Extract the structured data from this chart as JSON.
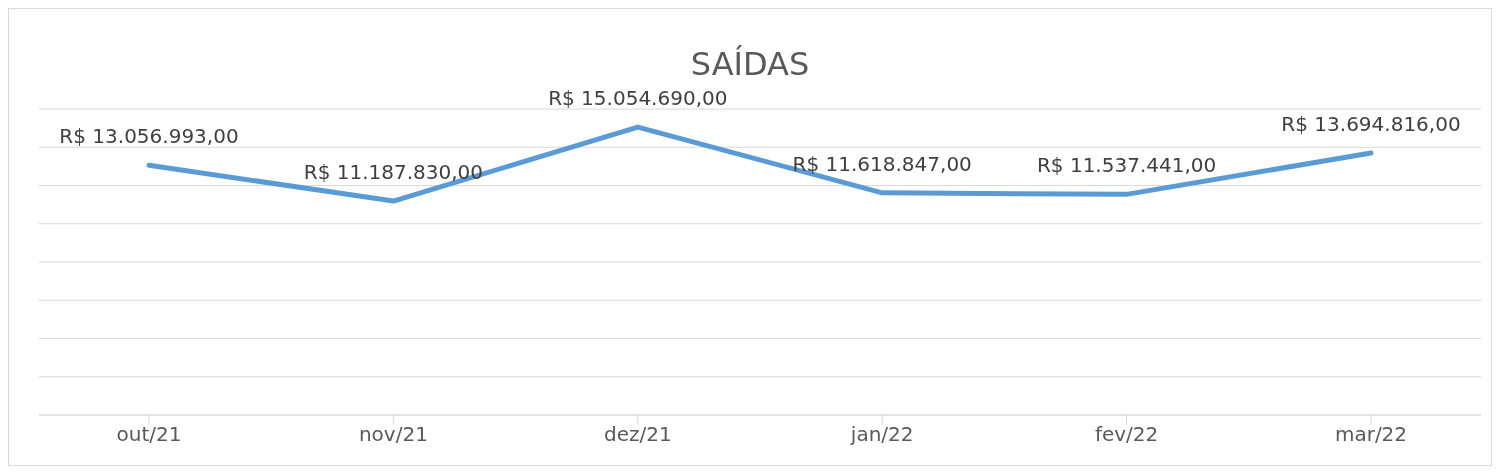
{
  "chart_data": {
    "type": "line",
    "title": "SAÍDAS",
    "categories": [
      "out/21",
      "nov/21",
      "dez/21",
      "jan/22",
      "fev/22",
      "mar/22"
    ],
    "series": [
      {
        "color": "#5b9bd5",
        "values": [
          13056993,
          11187830,
          15054690,
          11618847,
          11537441,
          13694816
        ],
        "value_labels": [
          "R$ 13.056.993,00",
          "R$ 11.187.830,00",
          "R$ 15.054.690,00",
          "R$ 11.618.847,00",
          "R$ 11.537.441,00",
          "R$ 13.694.816,00"
        ]
      }
    ],
    "ylim": [
      0,
      16000000
    ],
    "yticks": [
      {
        "value": 0,
        "label": null
      },
      {
        "value": 2000000,
        "label": null
      },
      {
        "value": 4000000,
        "label": null
      },
      {
        "value": 6000000,
        "label": null
      },
      {
        "value": 8000000,
        "label": null
      },
      {
        "value": 10000000,
        "label": null
      },
      {
        "value": 12000000,
        "label": null
      },
      {
        "value": 14000000,
        "label": null
      },
      {
        "value": 16000000,
        "label": null
      }
    ],
    "tick_labels": "x",
    "grid": "y",
    "legend": false,
    "marker": "none",
    "line_style": "solid"
  }
}
